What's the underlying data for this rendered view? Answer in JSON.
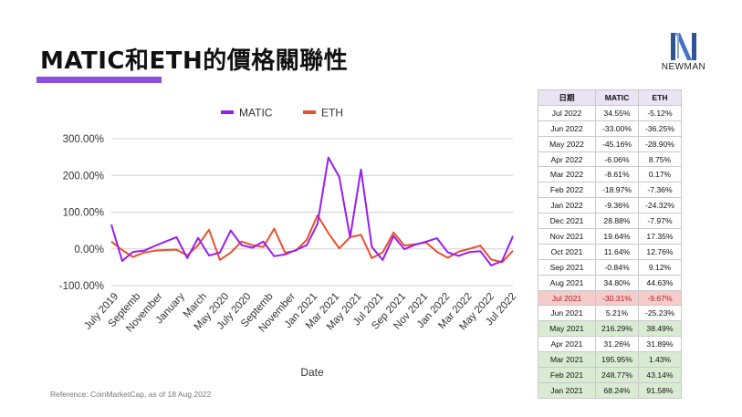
{
  "title": "MATIC和ETH的價格關聯性",
  "logo": {
    "name": "NEWMAN"
  },
  "reference": "Reference: CoinMarketCap, as of 18 Aug 2022",
  "colors": {
    "matic": "#9a1df0",
    "eth": "#e8502b",
    "accent": "#8e4fe0"
  },
  "table": {
    "headers": [
      "日期",
      "MATIC",
      "ETH"
    ],
    "rows": [
      {
        "period": "Jul 2022",
        "matic": "34.55%",
        "eth": "-5.12%",
        "hl": ""
      },
      {
        "period": "Jun 2022",
        "matic": "-33.00%",
        "eth": "-36.25%",
        "hl": ""
      },
      {
        "period": "May 2022",
        "matic": "-45.16%",
        "eth": "-28.90%",
        "hl": ""
      },
      {
        "period": "Apr 2022",
        "matic": "-6.06%",
        "eth": "8.75%",
        "hl": ""
      },
      {
        "period": "Mar 2022",
        "matic": "-8.61%",
        "eth": "0.17%",
        "hl": ""
      },
      {
        "period": "Feb 2022",
        "matic": "-18.97%",
        "eth": "-7.36%",
        "hl": ""
      },
      {
        "period": "Jan 2022",
        "matic": "-9.36%",
        "eth": "-24.32%",
        "hl": ""
      },
      {
        "period": "Dec 2021",
        "matic": "28.88%",
        "eth": "-7.97%",
        "hl": ""
      },
      {
        "period": "Nov 2021",
        "matic": "19.64%",
        "eth": "17.35%",
        "hl": ""
      },
      {
        "period": "Oct 2021",
        "matic": "11.64%",
        "eth": "12.76%",
        "hl": ""
      },
      {
        "period": "Sep 2021",
        "matic": "-0.84%",
        "eth": "9.12%",
        "hl": ""
      },
      {
        "period": "Aug 2021",
        "matic": "34.80%",
        "eth": "44.63%",
        "hl": ""
      },
      {
        "period": "Jul 2021",
        "matic": "-30.31%",
        "eth": "-9.67%",
        "hl": "red"
      },
      {
        "period": "Jun 2021",
        "matic": "5.21%",
        "eth": "-25.23%",
        "hl": ""
      },
      {
        "period": "May 2021",
        "matic": "216.29%",
        "eth": "38.49%",
        "hl": "green"
      },
      {
        "period": "Apr 2021",
        "matic": "31.26%",
        "eth": "31.89%",
        "hl": ""
      },
      {
        "period": "Mar 2021",
        "matic": "195.95%",
        "eth": "1.43%",
        "hl": "green"
      },
      {
        "period": "Feb 2021",
        "matic": "248.77%",
        "eth": "43.14%",
        "hl": "green"
      },
      {
        "period": "Jan 2021",
        "matic": "68.24%",
        "eth": "91.58%",
        "hl": "green"
      }
    ]
  },
  "chart_data": {
    "type": "line",
    "xlabel": "Date",
    "ylabel": "",
    "ylim": [
      -100,
      300
    ],
    "yticks": [
      300,
      200,
      100,
      0,
      -100
    ],
    "ytick_labels": [
      "300.00%",
      "200.00%",
      "100.00%",
      "0.00%",
      "-100.00%"
    ],
    "x_tick_labels": [
      "July 2019",
      "Septemb",
      "November",
      "January",
      "March",
      "May 2020",
      "July 2020",
      "Septemb",
      "November",
      "Jan 2021",
      "Mar 2021",
      "May 2021",
      "Jul 2021",
      "Sep 2021",
      "Nov 2021",
      "Jan 2022",
      "Mar 2022",
      "May 2022",
      "Jul 2022"
    ],
    "legend_position": "top",
    "grid": "horizontal",
    "series": [
      {
        "name": "MATIC",
        "values": [
          66,
          -33,
          -8,
          -5,
          8,
          20,
          32,
          -25,
          30,
          -18,
          -10,
          50,
          10,
          3,
          20,
          -20,
          -15,
          -3,
          10,
          68.24,
          248.77,
          195.95,
          31.26,
          216.29,
          5.21,
          -30.31,
          34.8,
          -0.84,
          11.64,
          19.64,
          28.88,
          -9.36,
          -18.97,
          -8.61,
          -6.06,
          -45.16,
          -33,
          34.55
        ]
      },
      {
        "name": "ETH",
        "values": [
          20,
          -3,
          -22,
          -10,
          -5,
          -3,
          -2,
          -18,
          10,
          52,
          -30,
          -10,
          20,
          10,
          5,
          55,
          -10,
          -5,
          25,
          91.58,
          43.14,
          1.43,
          31.89,
          38.49,
          -25.23,
          -9.67,
          44.63,
          9.12,
          12.76,
          17.35,
          -7.97,
          -24.32,
          -7.36,
          0.17,
          8.75,
          -28.9,
          -36.25,
          -5.12
        ]
      }
    ]
  }
}
